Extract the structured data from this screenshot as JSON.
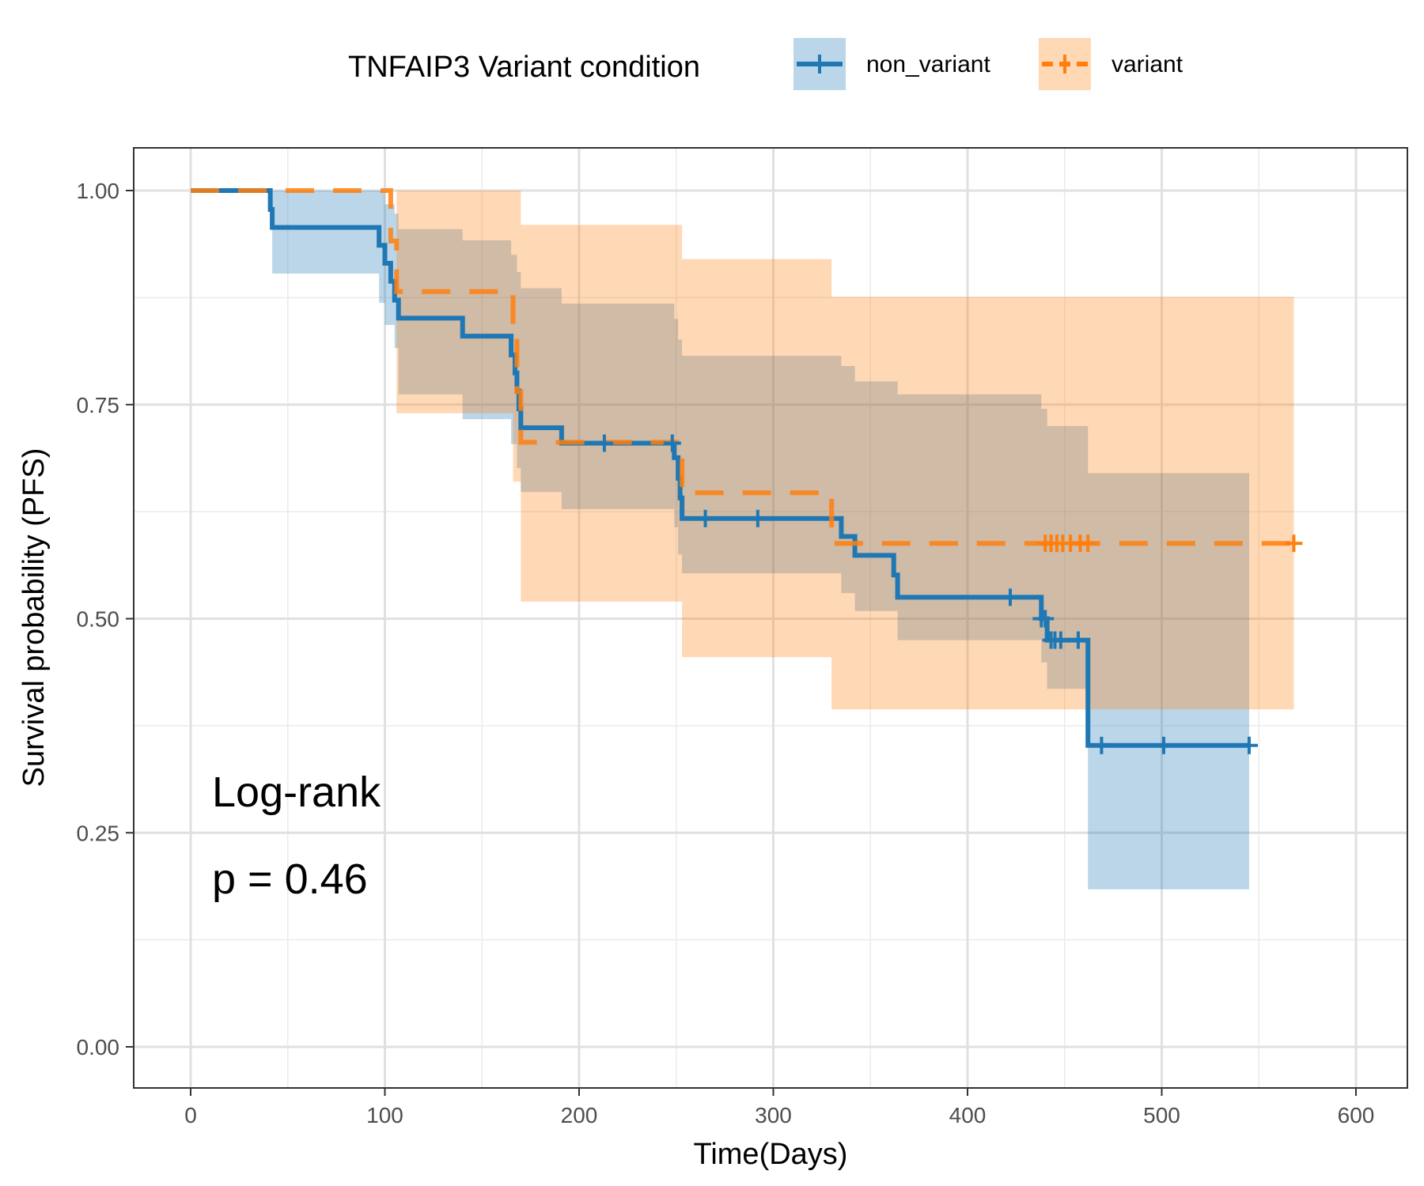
{
  "chart_data": {
    "type": "line",
    "subtype": "kaplan-meier",
    "xlabel": "Time(Days)",
    "ylabel": "Survival probability (PFS)",
    "xlim": [
      -30,
      625
    ],
    "ylim": [
      -0.05,
      1.05
    ],
    "x_ticks": [
      0,
      100,
      200,
      300,
      400,
      500,
      600
    ],
    "x_tick_labels": [
      "0",
      "100",
      "200",
      "300",
      "400",
      "500",
      "600"
    ],
    "y_ticks": [
      0,
      0.25,
      0.5,
      0.75,
      1.0
    ],
    "y_tick_labels": [
      "0.00",
      "0.25",
      "0.50",
      "0.75",
      "1.00"
    ],
    "grid": true,
    "legend": {
      "title": "TNFAIP3 Variant condition",
      "position": "top"
    },
    "annotations": [
      "Log-rank",
      "p = 0.46"
    ],
    "series": [
      {
        "name": "non_variant",
        "color": "#1f77b4",
        "line_style": "solid",
        "steps": [
          [
            0,
            1.0
          ],
          [
            41,
            0.978
          ],
          [
            42,
            0.957
          ],
          [
            97,
            0.936
          ],
          [
            100,
            0.915
          ],
          [
            103,
            0.894
          ],
          [
            105,
            0.872
          ],
          [
            107,
            0.851
          ],
          [
            140,
            0.83
          ],
          [
            165,
            0.808
          ],
          [
            167,
            0.787
          ],
          [
            168,
            0.766
          ],
          [
            169,
            0.745
          ],
          [
            170,
            0.723
          ],
          [
            191,
            0.705
          ],
          [
            249,
            0.688
          ],
          [
            251,
            0.664
          ],
          [
            252,
            0.641
          ],
          [
            253,
            0.617
          ],
          [
            335,
            0.596
          ],
          [
            342,
            0.574
          ],
          [
            362,
            0.551
          ],
          [
            364,
            0.525
          ],
          [
            438,
            0.5
          ],
          [
            441,
            0.475
          ],
          [
            462,
            0.352
          ],
          [
            545,
            0.352
          ]
        ],
        "ci": [
          [
            0,
            1.0,
            1.0
          ],
          [
            42,
            0.903,
            1.0
          ],
          [
            97,
            0.869,
            1.0
          ],
          [
            100,
            0.843,
            0.984
          ],
          [
            105,
            0.816,
            0.973
          ],
          [
            107,
            0.762,
            0.955
          ],
          [
            140,
            0.733,
            0.942
          ],
          [
            165,
            0.704,
            0.925
          ],
          [
            168,
            0.676,
            0.905
          ],
          [
            170,
            0.648,
            0.886
          ],
          [
            191,
            0.628,
            0.868
          ],
          [
            249,
            0.607,
            0.85
          ],
          [
            251,
            0.575,
            0.826
          ],
          [
            253,
            0.553,
            0.807
          ],
          [
            335,
            0.53,
            0.795
          ],
          [
            342,
            0.509,
            0.777
          ],
          [
            364,
            0.475,
            0.762
          ],
          [
            438,
            0.449,
            0.745
          ],
          [
            441,
            0.418,
            0.725
          ],
          [
            462,
            0.184,
            0.67
          ],
          [
            545,
            0.184,
            0.67
          ]
        ],
        "censored": [
          213,
          248,
          265,
          292,
          422,
          438,
          440,
          443,
          445,
          448,
          457,
          469,
          501,
          545
        ]
      },
      {
        "name": "variant",
        "color": "#ff7f0e",
        "line_style": "dashed",
        "steps": [
          [
            0,
            1.0
          ],
          [
            103,
            0.941
          ],
          [
            106,
            0.882
          ],
          [
            166,
            0.824
          ],
          [
            168,
            0.765
          ],
          [
            170,
            0.706
          ],
          [
            253,
            0.647
          ],
          [
            330,
            0.588
          ],
          [
            568,
            0.588
          ]
        ],
        "ci": [
          [
            0,
            1.0,
            1.0
          ],
          [
            106,
            0.74,
            1.0
          ],
          [
            166,
            0.66,
            1.0
          ],
          [
            170,
            0.52,
            0.96
          ],
          [
            253,
            0.455,
            0.92
          ],
          [
            330,
            0.394,
            0.876
          ],
          [
            568,
            0.394,
            0.876
          ]
        ],
        "censored": [
          440,
          443,
          446,
          449,
          453,
          458,
          462,
          568
        ]
      }
    ]
  }
}
